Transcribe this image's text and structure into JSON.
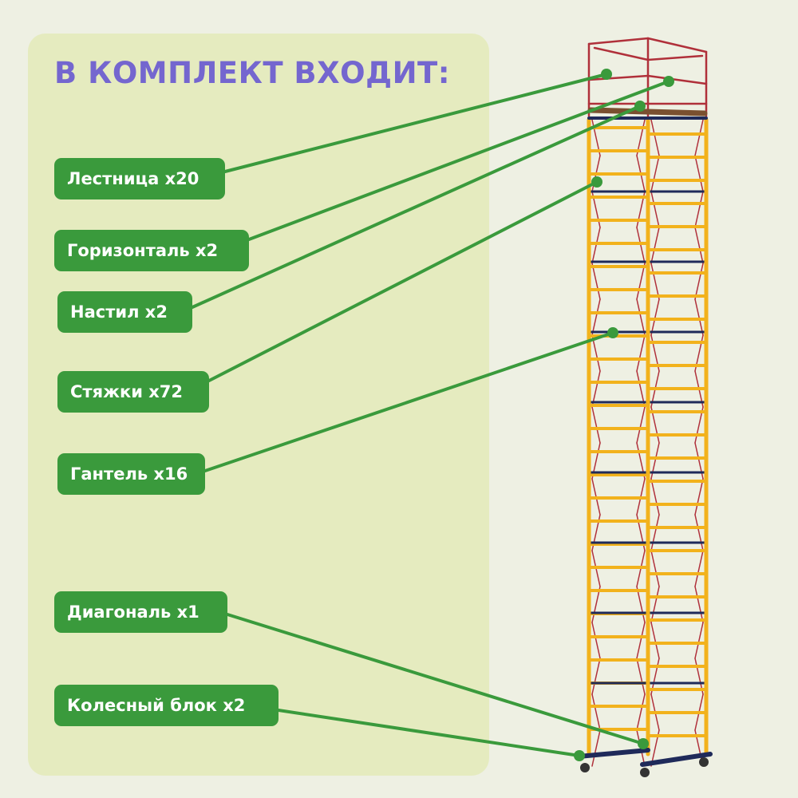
{
  "title": "В КОМПЛЕКТ ВХОДИТ:",
  "items": [
    {
      "label": "Лестница х20"
    },
    {
      "label": "Горизонталь х2"
    },
    {
      "label": "Настил х2"
    },
    {
      "label": "Стяжки х72"
    },
    {
      "label": "Гантель х16"
    },
    {
      "label": "Диагональ х1"
    },
    {
      "label": "Колесный блок х2"
    }
  ],
  "colors": {
    "accent_green": "#3a9a3c",
    "title": "#7466cf",
    "frame_yellow": "#f2b21c",
    "frame_red": "#b0303a",
    "frame_blue": "#1f2a5a"
  }
}
